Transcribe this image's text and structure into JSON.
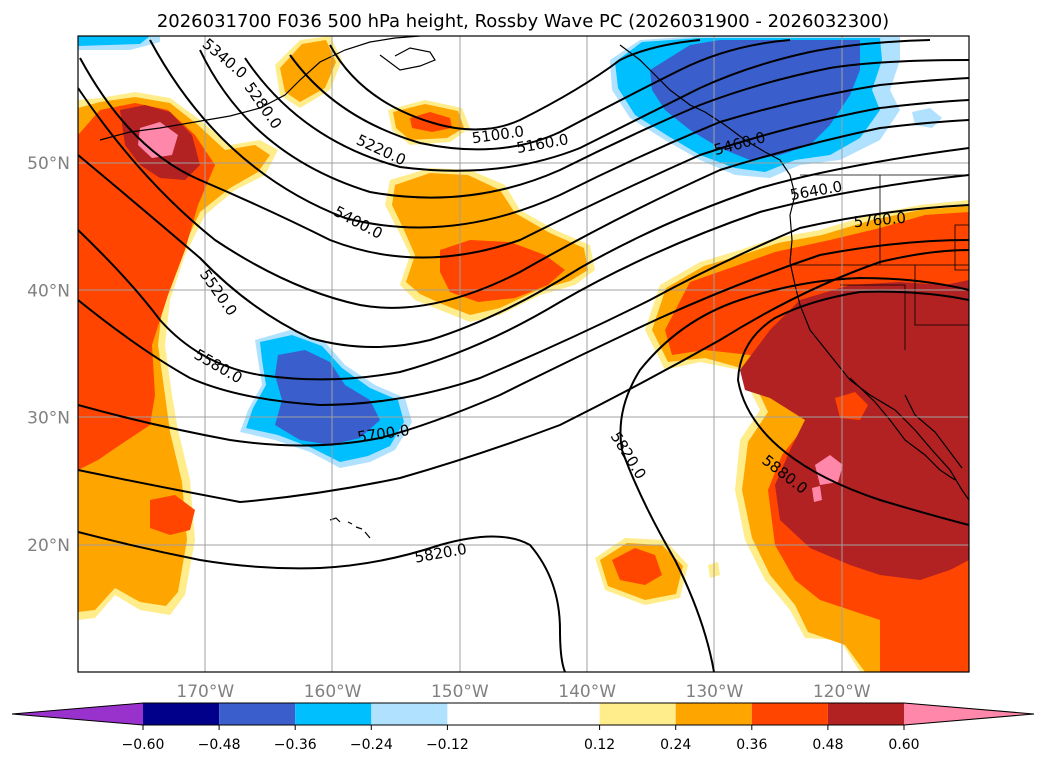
{
  "chart_data": {
    "type": "contour_map",
    "title": "2026031700 F036 500 hPa height, Rossby Wave PC (2026031900 - 2026032300)",
    "lon_range": [
      -180,
      -110
    ],
    "lat_range": [
      10,
      60
    ],
    "lat_ticks": [
      {
        "value": 20,
        "label": "20°N"
      },
      {
        "value": 30,
        "label": "30°N"
      },
      {
        "value": 40,
        "label": "40°N"
      },
      {
        "value": 50,
        "label": "50°N"
      }
    ],
    "lon_ticks": [
      {
        "value": -170,
        "label": "170°W"
      },
      {
        "value": -160,
        "label": "160°W"
      },
      {
        "value": -150,
        "label": "150°W"
      },
      {
        "value": -140,
        "label": "140°W"
      },
      {
        "value": -130,
        "label": "130°W"
      },
      {
        "value": -120,
        "label": "120°W"
      }
    ],
    "contour_labels": [
      {
        "text": "5100.0",
        "lon": -147.0,
        "lat": 52.2,
        "angle": -8
      },
      {
        "text": "5160.0",
        "lon": -143.5,
        "lat": 51.5,
        "angle": -10
      },
      {
        "text": "5220.0",
        "lon": -156.2,
        "lat": 51.0,
        "angle": 25
      },
      {
        "text": "5280.0",
        "lon": -165.5,
        "lat": 54.5,
        "angle": 55
      },
      {
        "text": "5340.0",
        "lon": -168.5,
        "lat": 58.2,
        "angle": 40
      },
      {
        "text": "5400.0",
        "lon": -158.0,
        "lat": 45.3,
        "angle": 28
      },
      {
        "text": "5460.0",
        "lon": -128.0,
        "lat": 51.5,
        "angle": -15
      },
      {
        "text": "5520.0",
        "lon": -169.0,
        "lat": 39.8,
        "angle": 55
      },
      {
        "text": "5580.0",
        "lon": -169.0,
        "lat": 34.0,
        "angle": 30
      },
      {
        "text": "5640.0",
        "lon": -122.0,
        "lat": 47.8,
        "angle": -10
      },
      {
        "text": "5700.0",
        "lon": -156.0,
        "lat": 28.7,
        "angle": -8
      },
      {
        "text": "5760.0",
        "lon": -117.0,
        "lat": 45.5,
        "angle": -5
      },
      {
        "text": "5820.0",
        "lon": -151.5,
        "lat": 19.3,
        "angle": -10
      },
      {
        "text": "5820.0",
        "lon": -136.8,
        "lat": 27.0,
        "angle": 58
      },
      {
        "text": "5880.0",
        "lon": -124.5,
        "lat": 25.5,
        "angle": 38
      }
    ],
    "colorbar": {
      "ticks": [
        {
          "value": -0.6,
          "label": "−0.60"
        },
        {
          "value": -0.48,
          "label": "−0.48"
        },
        {
          "value": -0.36,
          "label": "−0.36"
        },
        {
          "value": -0.24,
          "label": "−0.24"
        },
        {
          "value": -0.12,
          "label": "−0.12"
        },
        {
          "value": 0.12,
          "label": "0.12"
        },
        {
          "value": 0.24,
          "label": "0.24"
        },
        {
          "value": 0.36,
          "label": "0.36"
        },
        {
          "value": 0.48,
          "label": "0.48"
        },
        {
          "value": 0.6,
          "label": "0.60"
        }
      ],
      "bins": [
        {
          "from": -0.72,
          "to": -0.6,
          "color": "#9932cc",
          "extend": "min"
        },
        {
          "from": -0.6,
          "to": -0.48,
          "color": "#00008b"
        },
        {
          "from": -0.48,
          "to": -0.36,
          "color": "#3a5fcd"
        },
        {
          "from": -0.36,
          "to": -0.24,
          "color": "#00bfff"
        },
        {
          "from": -0.24,
          "to": -0.12,
          "color": "#b0e2ff"
        },
        {
          "from": -0.12,
          "to": 0.12,
          "color": "#ffffff"
        },
        {
          "from": 0.12,
          "to": 0.24,
          "color": "#ffec8b"
        },
        {
          "from": 0.24,
          "to": 0.36,
          "color": "#ffa500"
        },
        {
          "from": 0.36,
          "to": 0.48,
          "color": "#ff4500"
        },
        {
          "from": 0.48,
          "to": 0.6,
          "color": "#b22222"
        },
        {
          "from": 0.6,
          "to": 0.72,
          "color": "#ff88aa",
          "extend": "max"
        }
      ]
    }
  }
}
